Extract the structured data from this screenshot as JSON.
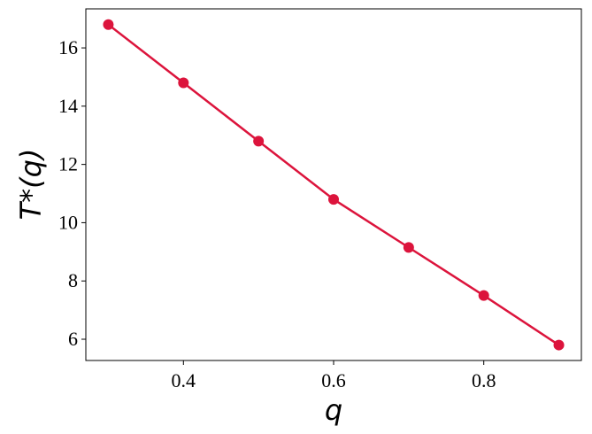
{
  "chart_data": {
    "type": "line",
    "x_label": "q",
    "y_label": "T*(q)",
    "x": [
      0.3,
      0.4,
      0.5,
      0.6,
      0.7,
      0.8,
      0.9
    ],
    "series": [
      {
        "color": "#dc143c",
        "values": [
          16.8,
          14.8,
          12.8,
          10.8,
          9.15,
          7.5,
          5.8
        ]
      }
    ],
    "xlim": [
      0.27,
      0.93
    ],
    "ylim": [
      5.27,
      17.34
    ],
    "xticks": [
      0.4,
      0.6,
      0.8
    ],
    "yticks": [
      6,
      8,
      10,
      12,
      14,
      16
    ],
    "grid": false
  }
}
